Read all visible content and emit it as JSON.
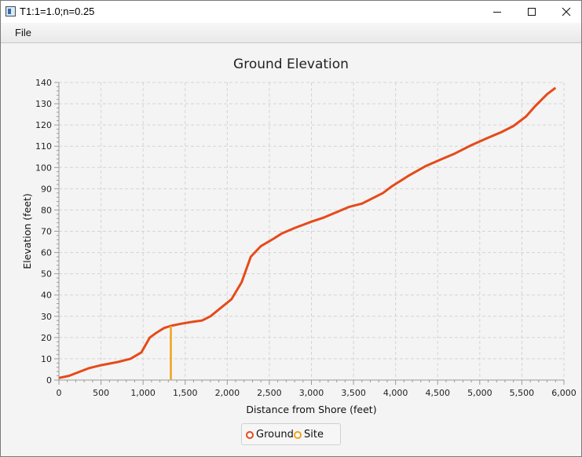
{
  "window": {
    "title": "T1:1=1.0;n=0.25"
  },
  "menu": {
    "file_label": "File"
  },
  "chart_data": {
    "type": "line",
    "title": "Ground Elevation",
    "xlabel": "Distance from Shore (feet)",
    "ylabel": "Elevation (feet)",
    "xlim": [
      0,
      6000
    ],
    "ylim": [
      0,
      140
    ],
    "x_ticks": [
      0,
      500,
      1000,
      1500,
      2000,
      2500,
      3000,
      3500,
      4000,
      4500,
      5000,
      5500,
      6000
    ],
    "x_tick_labels": [
      "0",
      "500",
      "1,000",
      "1,500",
      "2,000",
      "2,500",
      "3,000",
      "3,500",
      "4,000",
      "4,500",
      "5,000",
      "5,500",
      "6,000"
    ],
    "y_ticks": [
      0,
      10,
      20,
      30,
      40,
      50,
      60,
      70,
      80,
      90,
      100,
      110,
      120,
      130,
      140
    ],
    "grid": true,
    "legend_position": "bottom-center",
    "series": [
      {
        "name": "Ground",
        "color": "#e64a19",
        "points": [
          [
            0,
            1
          ],
          [
            120,
            2
          ],
          [
            220,
            3.5
          ],
          [
            350,
            5.5
          ],
          [
            500,
            7
          ],
          [
            700,
            8.5
          ],
          [
            850,
            10
          ],
          [
            980,
            13
          ],
          [
            1080,
            20
          ],
          [
            1150,
            22
          ],
          [
            1250,
            24.5
          ],
          [
            1330,
            25.5
          ],
          [
            1450,
            26.5
          ],
          [
            1600,
            27.5
          ],
          [
            1700,
            28
          ],
          [
            1800,
            30
          ],
          [
            2050,
            38
          ],
          [
            2170,
            46
          ],
          [
            2280,
            58
          ],
          [
            2400,
            63
          ],
          [
            2550,
            66.5
          ],
          [
            2650,
            69
          ],
          [
            2800,
            71.5
          ],
          [
            3000,
            74.5
          ],
          [
            3150,
            76.5
          ],
          [
            3300,
            79
          ],
          [
            3450,
            81.5
          ],
          [
            3600,
            83
          ],
          [
            3850,
            88
          ],
          [
            3950,
            91
          ],
          [
            4150,
            96
          ],
          [
            4350,
            100.5
          ],
          [
            4550,
            104
          ],
          [
            4700,
            106.5
          ],
          [
            4900,
            110.5
          ],
          [
            5100,
            114
          ],
          [
            5250,
            116.5
          ],
          [
            5400,
            119.5
          ],
          [
            5550,
            124
          ],
          [
            5650,
            128.5
          ],
          [
            5800,
            134.5
          ],
          [
            5900,
            137.5
          ]
        ]
      },
      {
        "name": "Site",
        "color": "#f2a11e",
        "points": [
          [
            1330,
            0
          ],
          [
            1330,
            25.5
          ]
        ]
      }
    ]
  }
}
